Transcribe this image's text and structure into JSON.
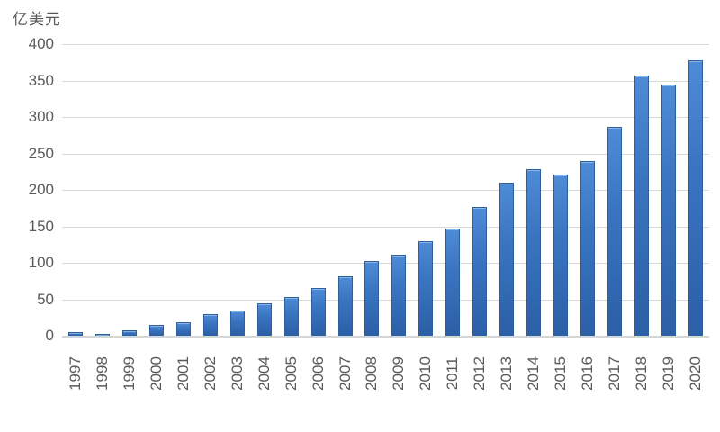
{
  "chart_data": {
    "type": "bar",
    "title": "",
    "ylabel": "亿美元",
    "xlabel": "",
    "categories": [
      "1997",
      "1998",
      "1999",
      "2000",
      "2001",
      "2002",
      "2003",
      "2004",
      "2005",
      "2006",
      "2007",
      "2008",
      "2009",
      "2010",
      "2011",
      "2012",
      "2013",
      "2014",
      "2015",
      "2016",
      "2017",
      "2018",
      "2019",
      "2020"
    ],
    "values": [
      5,
      3,
      7,
      15,
      18,
      30,
      35,
      45,
      53,
      65,
      82,
      102,
      111,
      130,
      147,
      177,
      210,
      228,
      221,
      239,
      287,
      357,
      344,
      378
    ],
    "ylim": [
      0,
      400
    ],
    "yticks": [
      0,
      50,
      100,
      150,
      200,
      250,
      300,
      350,
      400
    ],
    "grid": true,
    "legend": false,
    "colors": {
      "bar_top": "#4e8bd6",
      "bar_mid": "#3a74c0",
      "bar_bottom": "#2b5fa6",
      "bar_border": "#2d5f9e",
      "gridline": "#d9d9d9",
      "axis_line": "#d6d6d6",
      "text": "#595959"
    }
  }
}
